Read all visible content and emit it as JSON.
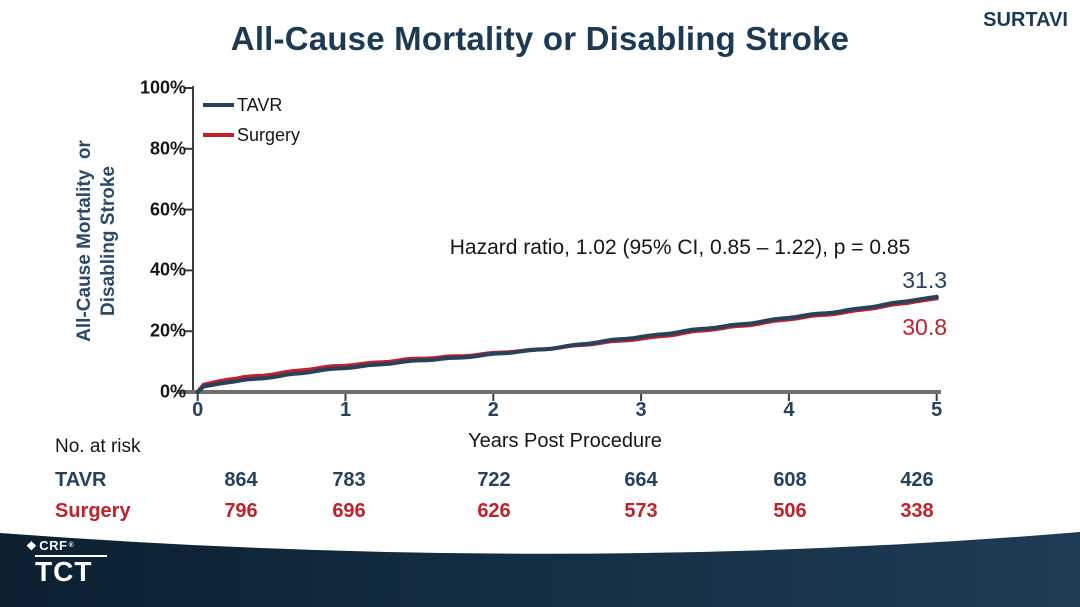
{
  "slide": {
    "title": "All-Cause Mortality or Disabling Stroke",
    "badge": "SURTAVI"
  },
  "chart_data": {
    "type": "line",
    "subtype": "kaplan-meier",
    "title": "All-Cause Mortality or Disabling Stroke",
    "ylabel_line1": "All-Cause Mortality  or",
    "ylabel_line2": "Disabling Stroke",
    "xlabel": "Years Post Procedure",
    "xlim": [
      0,
      5
    ],
    "ylim": [
      0,
      100
    ],
    "grid": false,
    "legend_position": "top-left",
    "annotation": "Hazard ratio, 1.02 (95% CI, 0.85 – 1.22), p = 0.85",
    "yticks": [
      {
        "v": 0,
        "label": "0%"
      },
      {
        "v": 20,
        "label": "20%"
      },
      {
        "v": 40,
        "label": "40%"
      },
      {
        "v": 60,
        "label": "60%"
      },
      {
        "v": 80,
        "label": "80%"
      },
      {
        "v": 100,
        "label": "100%"
      }
    ],
    "xticks": [
      {
        "v": 0,
        "label": "0"
      },
      {
        "v": 1,
        "label": "1"
      },
      {
        "v": 2,
        "label": "2"
      },
      {
        "v": 3,
        "label": "3"
      },
      {
        "v": 4,
        "label": "4"
      },
      {
        "v": 5,
        "label": "5"
      }
    ],
    "x": [
      0,
      0.04,
      0.15,
      0.3,
      0.5,
      0.75,
      1,
      1.25,
      1.5,
      1.75,
      2,
      2.25,
      2.5,
      2.75,
      3,
      3.25,
      3.5,
      3.75,
      4,
      4.25,
      4.5,
      4.75,
      4.9,
      5
    ],
    "series": [
      {
        "name": "TAVR",
        "color": "#27425d",
        "end_label": "31.3",
        "values": [
          0,
          1.8,
          2.8,
          3.8,
          5.0,
          6.5,
          8.0,
          9.2,
          10.3,
          11.3,
          12.4,
          13.6,
          15.1,
          16.6,
          18.2,
          19.7,
          21.2,
          22.8,
          24.4,
          26.0,
          27.6,
          29.4,
          30.6,
          31.3
        ]
      },
      {
        "name": "Surgery",
        "color": "#c2202a",
        "end_label": "30.8",
        "values": [
          0,
          2.4,
          3.6,
          4.7,
          5.9,
          7.4,
          8.8,
          9.9,
          10.9,
          11.8,
          12.7,
          13.7,
          15.0,
          16.2,
          17.6,
          19.1,
          20.7,
          22.3,
          23.9,
          25.5,
          27.1,
          28.9,
          30.1,
          30.8
        ]
      }
    ]
  },
  "risk_table": {
    "heading": "No. at risk",
    "rows": [
      {
        "name": "TAVR",
        "color": "#27425d",
        "values": [
          "864",
          "783",
          "722",
          "664",
          "608",
          "426"
        ]
      },
      {
        "name": "Surgery",
        "color": "#c2202a",
        "values": [
          "796",
          "696",
          "626",
          "573",
          "506",
          "338"
        ]
      }
    ]
  },
  "footer": {
    "org": "CRF",
    "reg_mark": "®",
    "event": "TCT",
    "band_color_left": "#0c2030",
    "band_color_right": "#1e3c56"
  },
  "colors": {
    "navy_text": "#1d3a55",
    "tavr_line": "#27425d",
    "surgery_line": "#c2202a",
    "axis_gray": "#6f6f6f",
    "tick_dark": "#3c3c3c",
    "black_text": "#161616"
  }
}
